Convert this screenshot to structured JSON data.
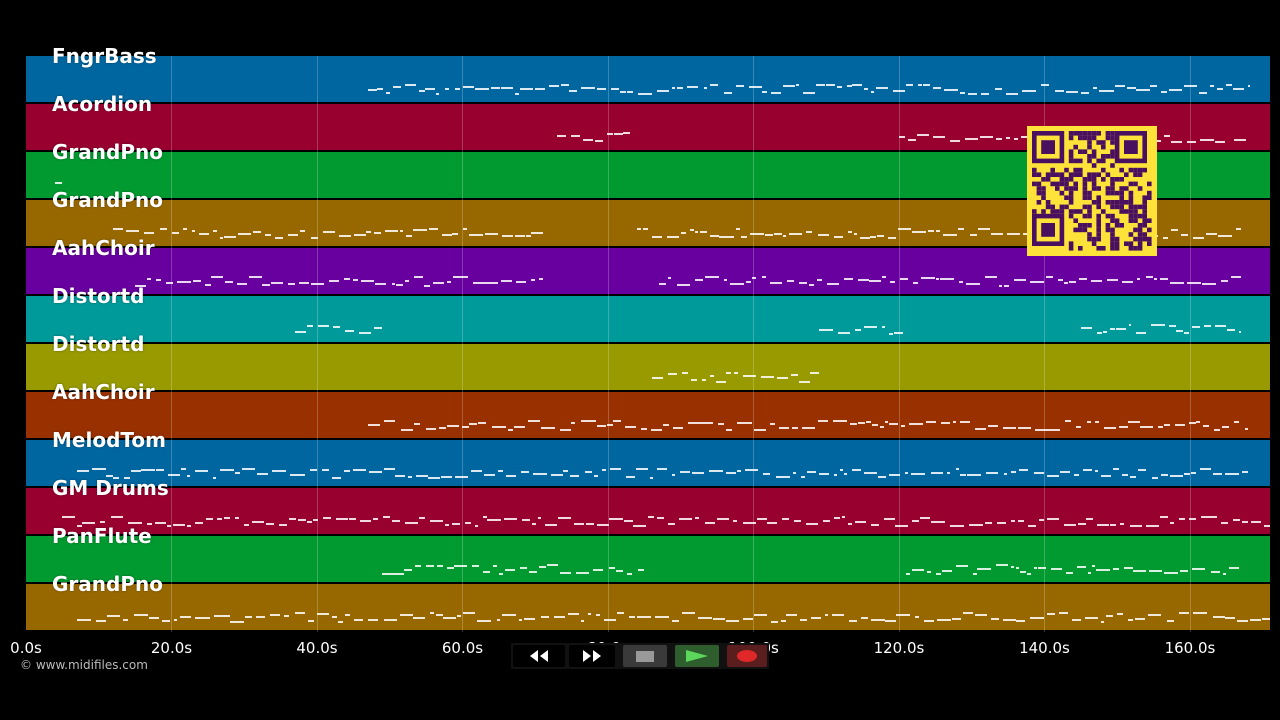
{
  "tracks": [
    {
      "name": "FngrBass",
      "color": "#0066a0"
    },
    {
      "name": "Acordion",
      "color": "#980030"
    },
    {
      "name": "GrandPno",
      "color": "#009a30"
    },
    {
      "name": "GrandPno",
      "color": "#986800"
    },
    {
      "name": "AahChoir",
      "color": "#6800a0"
    },
    {
      "name": "Distortd",
      "color": "#009a9a"
    },
    {
      "name": "Distortd",
      "color": "#989a00"
    },
    {
      "name": "AahChoir",
      "color": "#983000"
    },
    {
      "name": "MelodTom",
      "color": "#0066a0"
    },
    {
      "name": "GM Drums",
      "color": "#980030"
    },
    {
      "name": "PanFlute",
      "color": "#009a30"
    },
    {
      "name": "GrandPno",
      "color": "#986800"
    }
  ],
  "timeline": {
    "ticks": [
      "0.0s",
      "20.0s",
      "40.0s",
      "60.0s",
      "80.0s",
      "100.0s",
      "120.0s",
      "140.0s",
      "160.0s"
    ],
    "tick_values": [
      0,
      20,
      40,
      60,
      80,
      100,
      120,
      140,
      160
    ],
    "max_seconds": 171
  },
  "copyright": "© www.midifiles.com",
  "transport": {
    "rewind": "rewind-icon",
    "fast_forward": "fast-forward-icon",
    "stop": "stop-icon",
    "play": "play-icon",
    "record": "record-icon"
  },
  "qr_code": "qr-code"
}
